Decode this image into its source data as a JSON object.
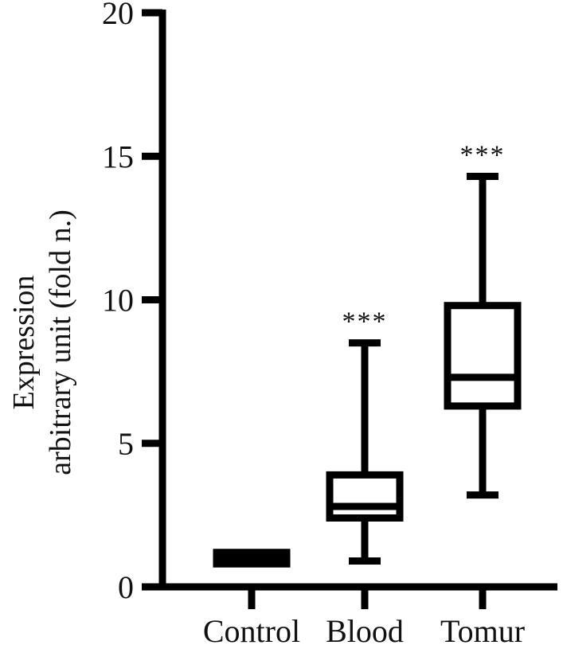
{
  "chart_data": {
    "type": "boxplot",
    "title": "",
    "ylabel": [
      "Expression",
      "arbitrary unit (fold n.)"
    ],
    "xlabel": "",
    "ylim": [
      0,
      20
    ],
    "yticks": [
      0,
      5,
      10,
      15,
      20
    ],
    "ytick_labels": [
      "0",
      "5",
      "10",
      "15",
      "20"
    ],
    "categories": [
      "Control",
      "Blood",
      "Tomur"
    ],
    "boxes": [
      {
        "name": "Control",
        "min": 0.8,
        "q1": 0.8,
        "median": 1.0,
        "q3": 1.2,
        "max": 1.2,
        "significance": ""
      },
      {
        "name": "Blood",
        "min": 0.9,
        "q1": 2.4,
        "median": 2.8,
        "q3": 3.9,
        "max": 8.5,
        "significance": "***"
      },
      {
        "name": "Tomur",
        "min": 3.2,
        "q1": 6.3,
        "median": 7.3,
        "q3": 9.8,
        "max": 14.3,
        "significance": "***"
      }
    ],
    "grid": false,
    "legend": "none",
    "colors": {
      "line": "#000000",
      "fill": "#ffffff",
      "control_fill": "#000000"
    }
  }
}
